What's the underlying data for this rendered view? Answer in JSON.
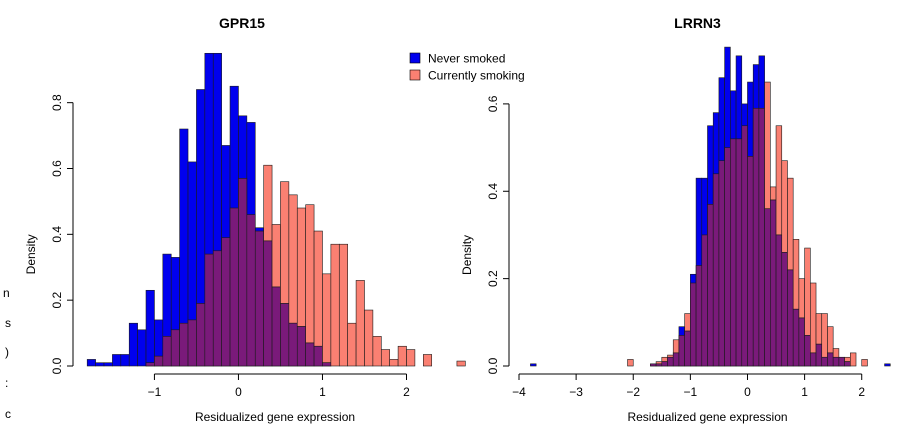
{
  "legend": {
    "items": [
      {
        "label": "Never smoked",
        "color": "#0000ee"
      },
      {
        "label": "Currently smoking",
        "color": "#fa8072"
      }
    ],
    "overlap_color": "#7a1a7a"
  },
  "edge_fragments": [
    "n",
    "s",
    ")",
    ":",
    "c"
  ],
  "chart_data": [
    {
      "type": "histogram",
      "title": "GPR15",
      "xlabel": "Residualized gene expression",
      "ylabel": "Density",
      "xlim": [
        -1.85,
        2.72
      ],
      "ylim": [
        0,
        0.96
      ],
      "x_ticks": [
        -1,
        0,
        1,
        2
      ],
      "x_tick_labels": [
        "−1",
        "0",
        "1",
        "2"
      ],
      "y_ticks": [
        0.0,
        0.2,
        0.4,
        0.6,
        0.8
      ],
      "y_tick_labels": [
        "0.0",
        "0.2",
        "0.4",
        "0.6",
        "0.8"
      ],
      "bin_width": 0.1,
      "series": [
        {
          "name": "Never smoked",
          "color": "#0000ee",
          "bin_starts": [
            -1.8,
            -1.7,
            -1.6,
            -1.5,
            -1.4,
            -1.3,
            -1.2,
            -1.1,
            -1.0,
            -0.9,
            -0.8,
            -0.7,
            -0.6,
            -0.5,
            -0.4,
            -0.3,
            -0.2,
            -0.1,
            0.0,
            0.1,
            0.2,
            0.3,
            0.4,
            0.5,
            0.6,
            0.7,
            0.8,
            0.9,
            1.0
          ],
          "values": [
            0.02,
            0.01,
            0.01,
            0.035,
            0.035,
            0.13,
            0.11,
            0.23,
            0.14,
            0.34,
            0.33,
            0.72,
            0.62,
            0.84,
            0.95,
            0.95,
            0.67,
            0.85,
            0.76,
            0.74,
            0.42,
            0.38,
            0.24,
            0.19,
            0.13,
            0.12,
            0.07,
            0.06,
            0.01
          ]
        },
        {
          "name": "Currently smoking",
          "color": "#fa8072",
          "bin_starts": [
            -1.1,
            -1.0,
            -0.9,
            -0.8,
            -0.7,
            -0.6,
            -0.5,
            -0.4,
            -0.3,
            -0.2,
            -0.1,
            0.0,
            0.1,
            0.2,
            0.3,
            0.4,
            0.5,
            0.6,
            0.7,
            0.8,
            0.9,
            1.0,
            1.1,
            1.2,
            1.3,
            1.4,
            1.5,
            1.6,
            1.7,
            1.8,
            1.9,
            2.0,
            2.1,
            2.2,
            2.3,
            2.4,
            2.5,
            2.6
          ],
          "values": [
            0.01,
            0.03,
            0.09,
            0.11,
            0.13,
            0.14,
            0.19,
            0.34,
            0.35,
            0.39,
            0.48,
            0.57,
            0.46,
            0.41,
            0.61,
            0.43,
            0.56,
            0.52,
            0.48,
            0.49,
            0.41,
            0.28,
            0.37,
            0.37,
            0.13,
            0.26,
            0.17,
            0.09,
            0.05,
            0.02,
            0.06,
            0.05,
            0.0,
            0.035,
            0.0,
            0.0,
            0.0,
            0.015
          ]
        }
      ]
    },
    {
      "type": "histogram",
      "title": "LRRN3",
      "xlabel": "Residualized gene expression",
      "ylabel": "Density",
      "xlim": [
        -4.0,
        2.6
      ],
      "ylim": [
        0,
        0.76
      ],
      "x_ticks": [
        -4,
        -3,
        -2,
        -1,
        0,
        1,
        2
      ],
      "x_tick_labels": [
        "−4",
        "−3",
        "−2",
        "−1",
        "0",
        "1",
        "2"
      ],
      "y_ticks": [
        0.0,
        0.2,
        0.4,
        0.6
      ],
      "y_tick_labels": [
        "0.0",
        "0.2",
        "0.4",
        "0.6"
      ],
      "bin_width": 0.1,
      "series": [
        {
          "name": "Never smoked",
          "color": "#0000ee",
          "bin_starts": [
            -3.8,
            -1.7,
            -1.6,
            -1.5,
            -1.4,
            -1.3,
            -1.2,
            -1.1,
            -1.0,
            -0.9,
            -0.8,
            -0.7,
            -0.6,
            -0.5,
            -0.4,
            -0.3,
            -0.2,
            -0.1,
            0.0,
            0.1,
            0.2,
            0.3,
            0.4,
            0.5,
            0.6,
            0.7,
            0.8,
            0.9,
            1.0,
            1.1,
            1.2,
            1.3,
            1.4,
            1.5,
            1.6,
            1.7,
            2.4
          ],
          "values": [
            0.005,
            0.005,
            0.005,
            0.01,
            0.02,
            0.03,
            0.09,
            0.08,
            0.21,
            0.43,
            0.43,
            0.55,
            0.58,
            0.66,
            0.73,
            0.63,
            0.71,
            0.6,
            0.65,
            0.69,
            0.71,
            0.36,
            0.38,
            0.3,
            0.26,
            0.22,
            0.13,
            0.11,
            0.07,
            0.03,
            0.05,
            0.02,
            0.03,
            0.02,
            0.02,
            0.01,
            0.005
          ]
        },
        {
          "name": "Currently smoking",
          "color": "#fa8072",
          "bin_starts": [
            -2.1,
            -1.7,
            -1.6,
            -1.5,
            -1.4,
            -1.3,
            -1.2,
            -1.1,
            -1.0,
            -0.9,
            -0.8,
            -0.7,
            -0.6,
            -0.5,
            -0.4,
            -0.3,
            -0.2,
            -0.1,
            0.0,
            0.1,
            0.2,
            0.3,
            0.4,
            0.5,
            0.6,
            0.7,
            0.8,
            0.9,
            1.0,
            1.1,
            1.2,
            1.3,
            1.4,
            1.5,
            1.6,
            1.7,
            1.8,
            2.0
          ],
          "values": [
            0.015,
            0.005,
            0.01,
            0.02,
            0.025,
            0.06,
            0.07,
            0.12,
            0.19,
            0.23,
            0.3,
            0.37,
            0.44,
            0.47,
            0.5,
            0.52,
            0.52,
            0.55,
            0.48,
            0.59,
            0.59,
            0.65,
            0.41,
            0.55,
            0.47,
            0.43,
            0.29,
            0.2,
            0.27,
            0.19,
            0.12,
            0.12,
            0.09,
            0.04,
            0.02,
            0.02,
            0.03,
            0.015
          ]
        }
      ]
    }
  ]
}
